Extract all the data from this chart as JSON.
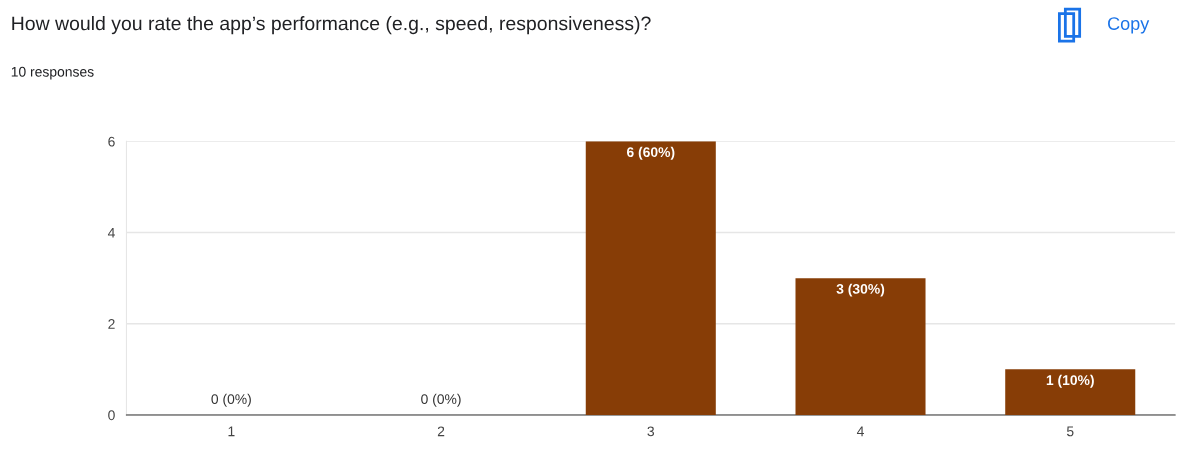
{
  "chart_data": {
    "type": "bar",
    "title": "How would you rate the app’s performance (e.g., speed, responsiveness)?",
    "subtitle": "10 responses",
    "annotations": [
      "Copy"
    ],
    "categories": [
      "1",
      "2",
      "3",
      "4",
      "5"
    ],
    "values": [
      0,
      0,
      6,
      3,
      1
    ],
    "color": "#873d06",
    "value_labels": [
      "0 (0%)",
      "0 (0%)",
      "6 (60%)",
      "3 (30%)",
      "1 (10%)"
    ],
    "ylim": [
      0,
      6
    ],
    "yticks": [
      0,
      2,
      4,
      6
    ],
    "grid": "y",
    "legend": false
  }
}
